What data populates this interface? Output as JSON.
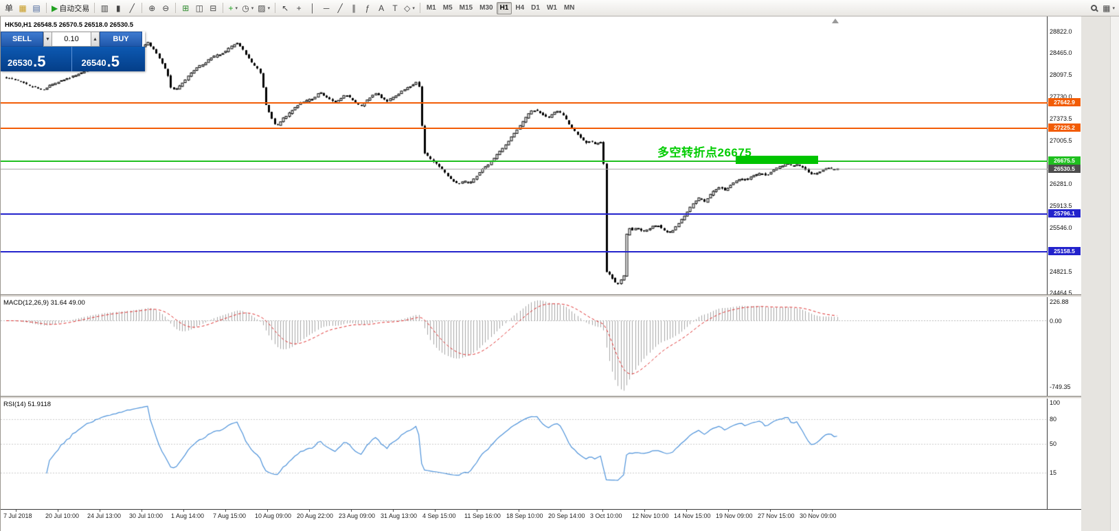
{
  "toolbar": {
    "groups": [
      {
        "buttons": [
          {
            "name": "new-order-button",
            "glyph": "单",
            "color": "#333333"
          },
          {
            "name": "new-chart-button",
            "glyph": "▦",
            "color": "#c79a1e"
          },
          {
            "name": "profiles-button",
            "glyph": "▤",
            "color": "#49679b"
          }
        ]
      },
      {
        "buttons": [
          {
            "name": "autotrading-button",
            "glyph": "▶",
            "color": "#21a121",
            "label": "自动交易"
          }
        ]
      },
      {
        "buttons": [
          {
            "name": "chart-bars-button",
            "glyph": "▥",
            "color": "#454545"
          },
          {
            "name": "chart-candles-button",
            "glyph": "▮",
            "color": "#454545"
          },
          {
            "name": "chart-line-button",
            "glyph": "╱",
            "color": "#454545"
          }
        ]
      },
      {
        "buttons": [
          {
            "name": "zoom-in-button",
            "glyph": "⊕",
            "color": "#454545"
          },
          {
            "name": "zoom-out-button",
            "glyph": "⊖",
            "color": "#454545"
          }
        ]
      },
      {
        "buttons": [
          {
            "name": "tile-windows-button",
            "glyph": "⊞",
            "color": "#2e8b2e"
          },
          {
            "name": "auto-scroll-button",
            "glyph": "◫",
            "color": "#454545"
          },
          {
            "name": "chart-shift-button",
            "glyph": "⊟",
            "color": "#454545"
          }
        ]
      },
      {
        "buttons": [
          {
            "name": "indicators-button",
            "glyph": "+",
            "color": "#21a121",
            "caret": true
          },
          {
            "name": "periods-button",
            "glyph": "◷",
            "color": "#454545",
            "caret": true
          },
          {
            "name": "templates-button",
            "glyph": "▨",
            "color": "#454545",
            "caret": true
          }
        ]
      },
      {
        "buttons": [
          {
            "name": "cursor-button",
            "glyph": "↖",
            "color": "#454545"
          },
          {
            "name": "crosshair-button",
            "glyph": "+",
            "color": "#454545"
          },
          {
            "name": "vline-button",
            "glyph": "│",
            "color": "#454545"
          },
          {
            "name": "hline-button",
            "glyph": "─",
            "color": "#454545"
          },
          {
            "name": "trendline-button",
            "glyph": "╱",
            "color": "#454545"
          },
          {
            "name": "channel-button",
            "glyph": "∥",
            "color": "#454545"
          },
          {
            "name": "fibonacci-button",
            "glyph": "ƒ",
            "color": "#454545"
          },
          {
            "name": "text-button",
            "glyph": "A",
            "color": "#454545"
          },
          {
            "name": "label-button",
            "glyph": "T",
            "color": "#454545"
          },
          {
            "name": "shapes-button",
            "glyph": "◇",
            "color": "#454545",
            "caret": true
          }
        ]
      }
    ],
    "timeframes": [
      "M1",
      "M5",
      "M15",
      "M30",
      "H1",
      "H4",
      "D1",
      "W1",
      "MN"
    ],
    "active_timeframe": "H1",
    "right_buttons": [
      {
        "name": "symbol-search-button",
        "glyph": "search"
      },
      {
        "name": "chart-layout-button",
        "glyph": "▦",
        "color": "#454545",
        "caret": true
      }
    ]
  },
  "chart": {
    "ohlc_line": "HK50,H1  26548.5 26570.5 26518.0 26530.5",
    "trade_panel": {
      "sell_label": "SELL",
      "buy_label": "BUY",
      "volume": "0.10",
      "spin_down_glyph": "▼",
      "spin_up_glyph": "▲",
      "sell_price": "26530",
      "sell_pip": ".5",
      "buy_price": "26540",
      "buy_pip": ".5"
    },
    "annotation": {
      "text": "多空转折点26675",
      "color": "#00cc00"
    },
    "price_axis_labels": [
      "28822.0",
      "28465.0",
      "28097.5",
      "27730.0",
      "27373.5",
      "27005.5",
      "26638.0",
      "26281.0",
      "25913.5",
      "25546.0",
      "25178.5",
      "24821.5",
      "24464.5"
    ],
    "levels": [
      {
        "name": "resistance-line-27642",
        "label": "27642.9",
        "value": 27642.9,
        "color": "#f25c05",
        "width": 2
      },
      {
        "name": "resistance-line-27225",
        "label": "27225.2",
        "value": 27225.2,
        "color": "#f25c05",
        "width": 2
      },
      {
        "name": "pivot-line-26675",
        "label": "26675.5",
        "value": 26675.5,
        "color": "#1fbf1f",
        "width": 2
      },
      {
        "name": "support-line-25796",
        "label": "25796.1",
        "value": 25796.1,
        "color": "#2222cc",
        "width": 2
      },
      {
        "name": "support-line-25158",
        "label": "25158.5",
        "value": 25158.5,
        "color": "#2222cc",
        "width": 2
      }
    ],
    "current_price": {
      "label": "26530.5",
      "value": 26530.5,
      "line_color": "#a8a8a8",
      "tag_color": "#4d4d4d"
    },
    "highlight_box": {
      "x": 1070,
      "width": 120,
      "price_top": 26748,
      "price_bottom": 26618,
      "color": "#00c400"
    }
  },
  "macd": {
    "label": "MACD(12,26,9) 31.64 49.00",
    "axis_labels": [
      "226.88",
      "0.00",
      "-749.35"
    ]
  },
  "rsi": {
    "label": "RSI(14) 51.9118",
    "axis_labels": [
      "100",
      "80",
      "50",
      "15"
    ],
    "axis_values": [
      100,
      80,
      50,
      15
    ],
    "level_values": [
      80,
      50,
      15
    ]
  },
  "time_axis": [
    "7 Jul 2018",
    "20 Jul 10:00",
    "24 Jul 13:00",
    "30 Jul 10:00",
    "1 Aug 14:00",
    "7 Aug 15:00",
    "10 Aug 09:00",
    "20 Aug 22:00",
    "23 Aug 09:00",
    "31 Aug 13:00",
    "4 Sep 15:00",
    "11 Sep 16:00",
    "18 Sep 10:00",
    "20 Sep 14:00",
    "3 Oct 10:00",
    "12 Nov 10:00",
    "14 Nov 15:00",
    "19 Nov 09:00",
    "27 Nov 15:00",
    "30 Nov 09:00"
  ],
  "chart_data": {
    "type": "candlestick",
    "symbol": "HK50",
    "period": "H1",
    "current_ohlc": {
      "open": 26548.5,
      "high": 26570.5,
      "low": 26518.0,
      "close": 26530.5
    },
    "y_axis": {
      "top_price": 28822.0,
      "top_y": 22,
      "bottom_price": 24464.5,
      "bottom_y": 403
    },
    "candle_spacing": 4.2,
    "x_range": [
      8,
      1218
    ],
    "price_path": [
      [
        8,
        28050
      ],
      [
        20,
        28030
      ],
      [
        32,
        27990
      ],
      [
        45,
        27920
      ],
      [
        55,
        27884
      ],
      [
        65,
        27840
      ],
      [
        75,
        27920
      ],
      [
        85,
        27975
      ],
      [
        105,
        28060
      ],
      [
        125,
        28150
      ],
      [
        150,
        28260
      ],
      [
        180,
        28380
      ],
      [
        205,
        28520
      ],
      [
        218,
        28640
      ],
      [
        228,
        28500
      ],
      [
        238,
        28320
      ],
      [
        246,
        28140
      ],
      [
        252,
        27880
      ],
      [
        258,
        27840
      ],
      [
        266,
        27930
      ],
      [
        276,
        28070
      ],
      [
        288,
        28210
      ],
      [
        300,
        28290
      ],
      [
        312,
        28400
      ],
      [
        322,
        28430
      ],
      [
        330,
        28480
      ],
      [
        340,
        28580
      ],
      [
        347,
        28640
      ],
      [
        354,
        28560
      ],
      [
        362,
        28420
      ],
      [
        370,
        28290
      ],
      [
        377,
        28210
      ],
      [
        383,
        28110
      ],
      [
        390,
        27600
      ],
      [
        398,
        27390
      ],
      [
        405,
        27240
      ],
      [
        413,
        27350
      ],
      [
        421,
        27430
      ],
      [
        430,
        27540
      ],
      [
        440,
        27630
      ],
      [
        450,
        27670
      ],
      [
        460,
        27710
      ],
      [
        468,
        27820
      ],
      [
        476,
        27740
      ],
      [
        483,
        27690
      ],
      [
        491,
        27630
      ],
      [
        499,
        27710
      ],
      [
        506,
        27770
      ],
      [
        513,
        27710
      ],
      [
        521,
        27630
      ],
      [
        528,
        27580
      ],
      [
        536,
        27665
      ],
      [
        543,
        27745
      ],
      [
        551,
        27800
      ],
      [
        558,
        27720
      ],
      [
        566,
        27655
      ],
      [
        573,
        27710
      ],
      [
        581,
        27765
      ],
      [
        589,
        27840
      ],
      [
        596,
        27885
      ],
      [
        603,
        27920
      ],
      [
        609,
        27975
      ],
      [
        614,
        27880
      ],
      [
        619,
        26830
      ],
      [
        626,
        26740
      ],
      [
        633,
        26660
      ],
      [
        641,
        26580
      ],
      [
        649,
        26490
      ],
      [
        656,
        26400
      ],
      [
        663,
        26320
      ],
      [
        671,
        26285
      ],
      [
        678,
        26330
      ],
      [
        686,
        26285
      ],
      [
        693,
        26375
      ],
      [
        701,
        26465
      ],
      [
        708,
        26560
      ],
      [
        716,
        26630
      ],
      [
        723,
        26720
      ],
      [
        729,
        26810
      ],
      [
        736,
        26890
      ],
      [
        743,
        27000
      ],
      [
        751,
        27120
      ],
      [
        759,
        27235
      ],
      [
        766,
        27350
      ],
      [
        773,
        27465
      ],
      [
        779,
        27520
      ],
      [
        786,
        27487
      ],
      [
        793,
        27430
      ],
      [
        801,
        27380
      ],
      [
        808,
        27465
      ],
      [
        816,
        27500
      ],
      [
        823,
        27430
      ],
      [
        829,
        27310
      ],
      [
        836,
        27200
      ],
      [
        843,
        27110
      ],
      [
        849,
        27040
      ],
      [
        856,
        26970
      ],
      [
        863,
        27000
      ],
      [
        869,
        26945
      ],
      [
        876,
        26980
      ],
      [
        881,
        26945
      ],
      [
        885,
        24830
      ],
      [
        891,
        24770
      ],
      [
        896,
        24680
      ],
      [
        901,
        24600
      ],
      [
        906,
        24660
      ],
      [
        911,
        24750
      ],
      [
        916,
        25570
      ],
      [
        923,
        25515
      ],
      [
        931,
        25550
      ],
      [
        939,
        25480
      ],
      [
        946,
        25515
      ],
      [
        953,
        25575
      ],
      [
        961,
        25595
      ],
      [
        969,
        25515
      ],
      [
        976,
        25460
      ],
      [
        983,
        25515
      ],
      [
        991,
        25630
      ],
      [
        999,
        25745
      ],
      [
        1006,
        25860
      ],
      [
        1013,
        25975
      ],
      [
        1021,
        26055
      ],
      [
        1029,
        25975
      ],
      [
        1036,
        26090
      ],
      [
        1043,
        26170
      ],
      [
        1051,
        26240
      ],
      [
        1059,
        26170
      ],
      [
        1066,
        26260
      ],
      [
        1073,
        26320
      ],
      [
        1081,
        26375
      ],
      [
        1089,
        26340
      ],
      [
        1096,
        26400
      ],
      [
        1103,
        26430
      ],
      [
        1111,
        26467
      ],
      [
        1119,
        26420
      ],
      [
        1126,
        26490
      ],
      [
        1133,
        26547
      ],
      [
        1141,
        26580
      ],
      [
        1149,
        26627
      ],
      [
        1156,
        26580
      ],
      [
        1163,
        26605
      ],
      [
        1171,
        26558
      ],
      [
        1179,
        26490
      ],
      [
        1186,
        26432
      ],
      [
        1193,
        26467
      ],
      [
        1201,
        26513
      ],
      [
        1209,
        26547
      ],
      [
        1216,
        26530
      ]
    ],
    "indicators": {
      "macd": {
        "fast": 12,
        "slow": 26,
        "signal": 9
      },
      "rsi": {
        "period": 14
      }
    }
  }
}
